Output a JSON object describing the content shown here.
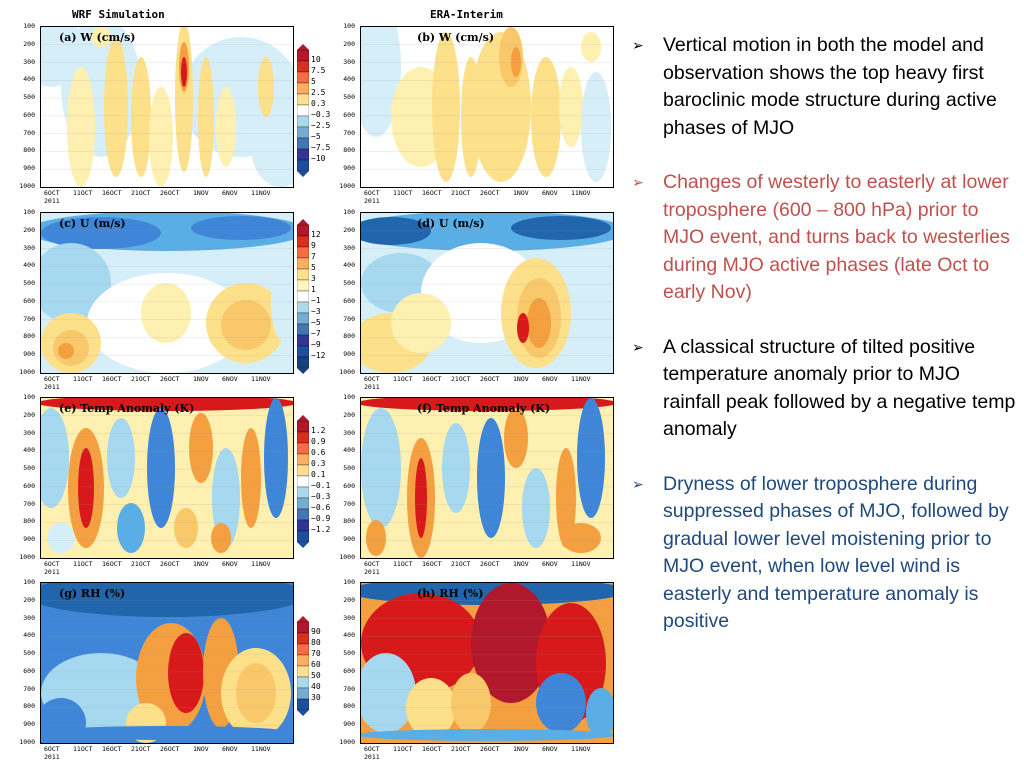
{
  "column_titles": [
    "WRF Simulation",
    "ERA-Interim"
  ],
  "chart_data": [
    {
      "type": "heatmap",
      "panel": "a",
      "title": "(a) W (cm/s)",
      "variable": "W",
      "units": "cm/s",
      "source": "WRF Simulation",
      "yticks": [
        100,
        200,
        300,
        400,
        500,
        600,
        700,
        800,
        900,
        1000
      ],
      "xticks": [
        "6OCT",
        "11OCT",
        "16OCT",
        "21OCT",
        "26OCT",
        "1NOV",
        "6NOV",
        "11NOV"
      ],
      "year": "2011",
      "levels": [
        10,
        7.5,
        5,
        2.5,
        0.3,
        -0.3,
        -2.5,
        -5,
        -7.5,
        -10
      ]
    },
    {
      "type": "heatmap",
      "panel": "b",
      "title": "(b) W (cm/s)",
      "variable": "W",
      "units": "cm/s",
      "source": "ERA-Interim",
      "yticks": [
        100,
        200,
        300,
        400,
        500,
        600,
        700,
        800,
        900,
        1000
      ],
      "xticks": [
        "6OCT",
        "11OCT",
        "16OCT",
        "21OCT",
        "26OCT",
        "1NOV",
        "6NOV",
        "11NOV"
      ],
      "year": "2011"
    },
    {
      "type": "heatmap",
      "panel": "c",
      "title": "(c) U (m/s)",
      "variable": "U",
      "units": "m/s",
      "source": "WRF Simulation",
      "yticks": [
        100,
        200,
        300,
        400,
        500,
        600,
        700,
        800,
        900,
        1000
      ],
      "xticks": [
        "6OCT",
        "11OCT",
        "16OCT",
        "21OCT",
        "26OCT",
        "1NOV",
        "6NOV",
        "11NOV"
      ],
      "year": "2011",
      "levels": [
        12,
        9,
        7,
        5,
        3,
        1,
        -1,
        -3,
        -5,
        -7,
        -9,
        -12
      ]
    },
    {
      "type": "heatmap",
      "panel": "d",
      "title": "(d) U (m/s)",
      "variable": "U",
      "units": "m/s",
      "source": "ERA-Interim",
      "yticks": [
        100,
        200,
        300,
        400,
        500,
        600,
        700,
        800,
        900,
        1000
      ],
      "xticks": [
        "6OCT",
        "11OCT",
        "16OCT",
        "21OCT",
        "26OCT",
        "1NOV",
        "6NOV",
        "11NOV"
      ],
      "year": "2011"
    },
    {
      "type": "heatmap",
      "panel": "e",
      "title": "(e) Temp Anomaly (K)",
      "variable": "Temp Anomaly",
      "units": "K",
      "source": "WRF Simulation",
      "yticks": [
        100,
        200,
        300,
        400,
        500,
        600,
        700,
        800,
        900,
        1000
      ],
      "xticks": [
        "6OCT",
        "11OCT",
        "16OCT",
        "21OCT",
        "26OCT",
        "1NOV",
        "6NOV",
        "11NOV"
      ],
      "year": "2011",
      "levels": [
        1.2,
        0.9,
        0.6,
        0.3,
        0.1,
        -0.1,
        -0.3,
        -0.6,
        -0.9,
        -1.2
      ]
    },
    {
      "type": "heatmap",
      "panel": "f",
      "title": "(f) Temp Anomaly (K)",
      "variable": "Temp Anomaly",
      "units": "K",
      "source": "ERA-Interim",
      "yticks": [
        100,
        200,
        300,
        400,
        500,
        600,
        700,
        800,
        900,
        1000
      ],
      "xticks": [
        "6OCT",
        "11OCT",
        "16OCT",
        "21OCT",
        "26OCT",
        "1NOV",
        "6NOV",
        "11NOV"
      ],
      "year": "2011"
    },
    {
      "type": "heatmap",
      "panel": "g",
      "title": "(g) RH (%)",
      "variable": "RH",
      "units": "%",
      "source": "WRF Simulation",
      "yticks": [
        100,
        200,
        300,
        400,
        500,
        600,
        700,
        800,
        900,
        1000
      ],
      "xticks": [
        "6OCT",
        "11OCT",
        "16OCT",
        "21OCT",
        "26OCT",
        "1NOV",
        "6NOV",
        "11NOV"
      ],
      "year": "2011",
      "levels": [
        90,
        80,
        70,
        60,
        50,
        40,
        30
      ]
    },
    {
      "type": "heatmap",
      "panel": "h",
      "title": "(h) RH (%)",
      "variable": "RH",
      "units": "%",
      "source": "ERA-Interim",
      "yticks": [
        100,
        200,
        300,
        400,
        500,
        600,
        700,
        800,
        900,
        1000
      ],
      "xticks": [
        "6OCT",
        "11OCT",
        "16OCT",
        "21OCT",
        "26OCT",
        "1NOV",
        "6NOV",
        "11NOV"
      ],
      "year": "2011"
    }
  ],
  "bullets": [
    {
      "text": "Vertical motion in both the model and observation shows the top heavy first baroclinic mode structure during active phases of MJO",
      "color": "#000000"
    },
    {
      "text": "Changes of westerly to easterly at lower troposphere (600 – 800 hPa) prior to MJO event, and turns back to westerlies during MJO active phases (late Oct to early Nov)",
      "color": "#c0504d"
    },
    {
      "text": "A classical structure of tilted positive temperature anomaly prior to MJO rainfall peak followed by a negative temp anomaly",
      "color": "#000000"
    },
    {
      "text": "Dryness of lower troposphere during suppressed phases of MJO, followed by gradual lower level moistening prior to MJO event, when low level wind is easterly and temperature anomaly is positive",
      "color": "#1f497d"
    }
  ],
  "palette": {
    "red": "#d7191c",
    "darkred": "#b2182b",
    "orange": "#f4a040",
    "lightorange": "#f9c86b",
    "yellow": "#fde08a",
    "paleyellow": "#fdf0b0",
    "white": "#ffffff",
    "paleblue": "#d6eef8",
    "lightblue": "#a6d8f0",
    "blue": "#5aaee6",
    "midblue": "#3f86d8",
    "darkblue": "#2166ac"
  }
}
